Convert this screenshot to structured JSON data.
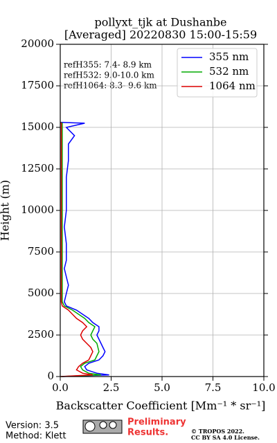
{
  "chart_data": {
    "type": "line",
    "title": [
      "pollyxt_tjk at Dushanbe",
      "[Averaged] 20220830 15:00-15:59"
    ],
    "xlabel": "Backscatter Coefficient [Mm⁻¹ * sr⁻¹]",
    "ylabel": "Height (m)",
    "annotations": [
      "refH355:  7.4- 8.9 km",
      "refH532:  9.0-10.0 km",
      "refH1064:  8.3- 9.6 km"
    ],
    "y": [
      0,
      100,
      200,
      400,
      600,
      800,
      1000,
      1250,
      1500,
      1750,
      2000,
      2250,
      2500,
      2750,
      3000,
      3250,
      3500,
      3750,
      4000,
      4250,
      4500,
      5000,
      5500,
      6000,
      6500,
      7000,
      8000,
      9000,
      10000,
      11000,
      12000,
      13000,
      14000,
      14500,
      15000,
      15250,
      15300
    ],
    "series": [
      {
        "name": "355 nm",
        "color": "#0000ff",
        "values": [
          0.1,
          2.4,
          1.8,
          1.3,
          1.2,
          1.4,
          1.9,
          2.1,
          2.2,
          2.1,
          2.0,
          1.9,
          1.8,
          1.9,
          1.9,
          1.6,
          1.4,
          1.1,
          0.8,
          0.3,
          0.2,
          0.3,
          0.4,
          0.3,
          0.2,
          0.3,
          0.3,
          0.2,
          0.3,
          0.3,
          0.3,
          0.4,
          0.4,
          0.7,
          0.3,
          1.2,
          0.0
        ]
      },
      {
        "name": "532 nm",
        "color": "#00aa00",
        "values": [
          0.05,
          2.0,
          1.4,
          1.1,
          1.0,
          1.2,
          1.7,
          1.8,
          1.9,
          1.85,
          1.8,
          1.6,
          1.5,
          1.6,
          1.7,
          1.4,
          1.2,
          0.9,
          0.6,
          0.2,
          0.1,
          0.1,
          0.1,
          0.1,
          0.1,
          0.1,
          0.1,
          0.1,
          0.1,
          0.1,
          0.1,
          0.1,
          0.1,
          0.1,
          0.1,
          0.1,
          0.0
        ]
      },
      {
        "name": "1064 nm",
        "color": "#dd0000",
        "values": [
          0.02,
          1.6,
          1.1,
          0.8,
          0.9,
          1.1,
          1.4,
          1.5,
          1.6,
          1.5,
          1.3,
          1.1,
          1.0,
          1.1,
          1.3,
          1.1,
          0.8,
          0.6,
          0.4,
          0.1,
          0.05,
          0.05,
          0.05,
          0.05,
          0.05,
          0.05,
          0.05,
          0.05,
          0.05,
          0.05,
          0.05,
          0.05,
          0.05,
          0.05,
          0.05,
          0.05,
          0.0
        ]
      }
    ],
    "xlim": [
      0,
      10
    ],
    "xticks": [
      {
        "value": 0,
        "label": "0.0"
      },
      {
        "value": 2.5,
        "label": "2.5"
      },
      {
        "value": 5,
        "label": "5.0"
      },
      {
        "value": 7.5,
        "label": "7.5"
      },
      {
        "value": 10,
        "label": "10.0"
      }
    ],
    "ylim": [
      0,
      20000
    ],
    "yticks": [
      0,
      2500,
      5000,
      7500,
      10000,
      12500,
      15000,
      17500,
      20000
    ],
    "grid": true,
    "legend": "upper right"
  },
  "footer": {
    "version": "Version: 3.5",
    "method": "Method: Klett",
    "preliminary": [
      "Preliminary",
      "Results."
    ],
    "copyright": [
      "© TROPOS 2022.",
      "CC BY SA 4.0 License."
    ]
  }
}
